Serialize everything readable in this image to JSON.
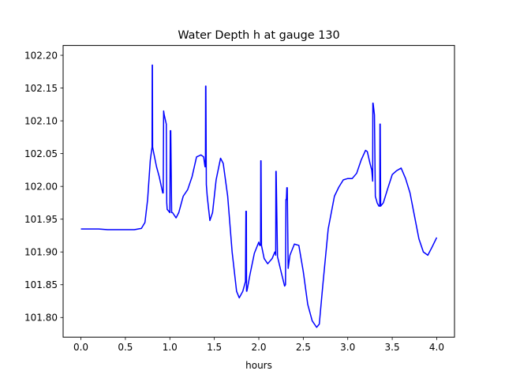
{
  "chart_data": {
    "type": "line",
    "title": "Water Depth h at gauge 130",
    "xlabel": "hours",
    "ylabel": "",
    "xlim": [
      -0.2,
      4.2
    ],
    "ylim": [
      101.77,
      102.215
    ],
    "xticks": [
      0.0,
      0.5,
      1.0,
      1.5,
      2.0,
      2.5,
      3.0,
      3.5,
      4.0
    ],
    "xtick_labels": [
      "0.0",
      "0.5",
      "1.0",
      "1.5",
      "2.0",
      "2.5",
      "3.0",
      "3.5",
      "4.0"
    ],
    "yticks": [
      101.8,
      101.85,
      101.9,
      101.95,
      102.0,
      102.05,
      102.1,
      102.15,
      102.2
    ],
    "ytick_labels": [
      "101.80",
      "101.85",
      "101.90",
      "101.95",
      "102.00",
      "102.05",
      "102.10",
      "102.15",
      "102.20"
    ],
    "grid": false,
    "series": [
      {
        "color": "#0000ff",
        "x": [
          0.0,
          0.2,
          0.3,
          0.5,
          0.6,
          0.68,
          0.72,
          0.75,
          0.78,
          0.8,
          0.802,
          0.804,
          0.806,
          0.82,
          0.85,
          0.88,
          0.92,
          0.925,
          0.93,
          0.935,
          0.96,
          0.965,
          0.97,
          1.0,
          1.005,
          1.01,
          1.02,
          1.025,
          1.03,
          1.07,
          1.1,
          1.15,
          1.2,
          1.25,
          1.3,
          1.35,
          1.38,
          1.395,
          1.4,
          1.402,
          1.405,
          1.41,
          1.42,
          1.45,
          1.48,
          1.52,
          1.57,
          1.6,
          1.65,
          1.7,
          1.75,
          1.78,
          1.82,
          1.85,
          1.855,
          1.86,
          1.862,
          1.865,
          1.87,
          1.9,
          1.95,
          2.0,
          2.01,
          2.02,
          2.022,
          2.025,
          2.03,
          2.06,
          2.1,
          2.15,
          2.18,
          2.185,
          2.19,
          2.192,
          2.195,
          2.21,
          2.25,
          2.29,
          2.3,
          2.305,
          2.31,
          2.315,
          2.32,
          2.33,
          2.35,
          2.4,
          2.45,
          2.5,
          2.55,
          2.6,
          2.65,
          2.68,
          2.72,
          2.78,
          2.85,
          2.9,
          2.95,
          3.0,
          3.05,
          3.1,
          3.15,
          3.2,
          3.22,
          3.25,
          3.27,
          3.28,
          3.282,
          3.285,
          3.3,
          3.31,
          3.32,
          3.325,
          3.33,
          3.35,
          3.36,
          3.362,
          3.365,
          3.37,
          3.4,
          3.45,
          3.5,
          3.55,
          3.6,
          3.65,
          3.7,
          3.75,
          3.8,
          3.85,
          3.9,
          3.95,
          4.0
        ],
        "y": [
          101.935,
          101.935,
          101.934,
          101.934,
          101.934,
          101.936,
          101.945,
          101.98,
          102.04,
          102.06,
          102.185,
          102.185,
          102.06,
          102.05,
          102.03,
          102.015,
          101.99,
          101.99,
          102.115,
          102.11,
          102.095,
          101.975,
          101.965,
          101.96,
          102.085,
          102.085,
          101.96,
          101.96,
          101.96,
          101.952,
          101.96,
          101.985,
          101.995,
          102.015,
          102.045,
          102.048,
          102.045,
          102.03,
          102.03,
          102.153,
          102.153,
          102.003,
          101.985,
          101.948,
          101.96,
          102.01,
          102.043,
          102.035,
          101.985,
          101.9,
          101.84,
          101.83,
          101.84,
          101.855,
          101.962,
          101.962,
          101.84,
          101.84,
          101.843,
          101.865,
          101.898,
          101.915,
          101.91,
          101.91,
          102.039,
          102.039,
          101.91,
          101.89,
          101.882,
          101.89,
          101.9,
          101.9,
          101.895,
          102.023,
          102.023,
          101.893,
          101.87,
          101.848,
          101.85,
          101.98,
          101.98,
          101.998,
          101.998,
          101.875,
          101.895,
          101.912,
          101.91,
          101.87,
          101.82,
          101.795,
          101.785,
          101.79,
          101.85,
          101.935,
          101.985,
          101.999,
          102.01,
          102.012,
          102.012,
          102.02,
          102.04,
          102.055,
          102.053,
          102.035,
          102.025,
          102.008,
          102.127,
          102.127,
          102.109,
          101.985,
          101.98,
          101.978,
          101.975,
          101.97,
          101.97,
          102.095,
          102.095,
          101.97,
          101.975,
          101.997,
          102.018,
          102.024,
          102.028,
          102.012,
          101.99,
          101.955,
          101.92,
          101.9,
          101.895,
          101.908,
          101.922
        ]
      }
    ]
  }
}
